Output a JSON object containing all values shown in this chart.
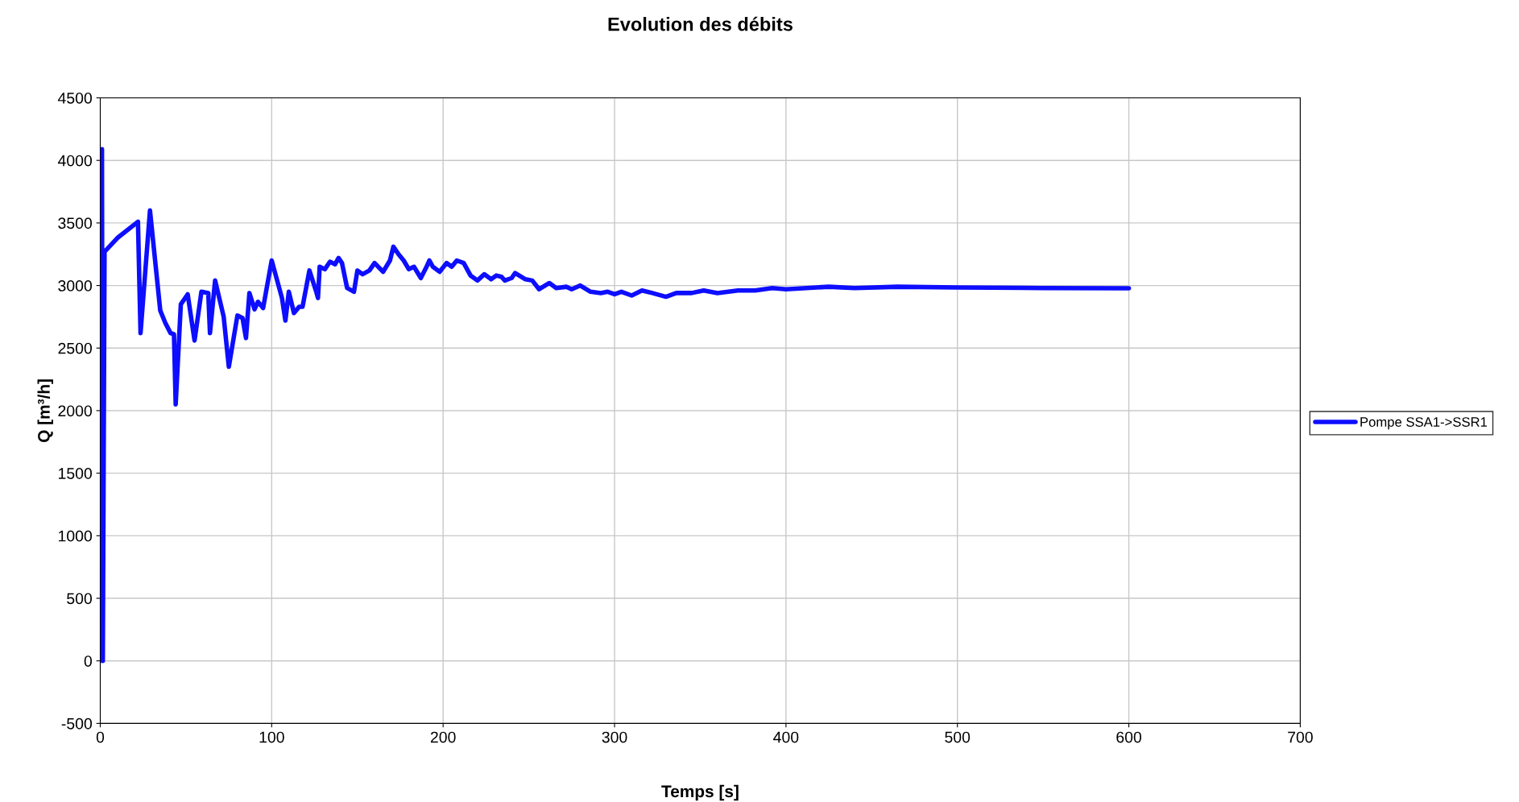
{
  "chart_data": {
    "type": "line",
    "title": "Evolution des débits",
    "xlabel": "Temps [s]",
    "ylabel": "Q [m³/h]",
    "xlim": [
      0,
      700
    ],
    "xticks": [
      0,
      100,
      200,
      300,
      400,
      500,
      600,
      700
    ],
    "ylim": [
      -500,
      4500
    ],
    "yticks": [
      -500,
      0,
      500,
      1000,
      1500,
      2000,
      2500,
      3000,
      3500,
      4000,
      4500
    ],
    "grid": true,
    "legend": "right",
    "marker": "none",
    "line_style": "solid",
    "series": [
      {
        "name": "Pompe SSA1->SSR1",
        "color": "#0d0dff",
        "x": [
          0,
          1,
          1.5,
          2.5,
          10,
          22,
          23.5,
          29,
          35,
          38,
          41,
          43,
          44,
          47,
          51,
          55,
          59,
          63,
          64,
          67,
          72,
          75,
          80,
          83,
          85,
          87,
          90,
          92,
          95,
          100,
          106,
          108,
          110,
          113,
          116,
          118,
          122,
          126,
          127,
          128,
          131,
          134,
          137,
          139,
          141,
          144,
          148,
          150,
          153,
          157,
          160,
          165,
          169,
          171,
          174,
          177,
          180,
          183,
          187,
          190,
          192,
          194,
          198,
          202,
          205,
          208,
          212,
          216,
          220,
          224,
          228,
          231,
          234,
          236,
          240,
          242,
          248,
          252,
          256,
          262,
          266,
          272,
          275,
          280,
          286,
          292,
          296,
          300,
          304,
          310,
          316,
          322,
          330,
          336,
          345,
          352,
          360,
          372,
          382,
          392,
          400,
          425,
          440,
          465,
          500,
          550,
          600
        ],
        "values": [
          0,
          4090,
          0,
          3270,
          3380,
          3510,
          2620,
          3600,
          2800,
          2700,
          2620,
          2610,
          2050,
          2850,
          2930,
          2560,
          2950,
          2940,
          2620,
          3040,
          2750,
          2350,
          2760,
          2740,
          2580,
          2940,
          2810,
          2870,
          2820,
          3200,
          2900,
          2720,
          2950,
          2780,
          2830,
          2830,
          3120,
          2950,
          2900,
          3150,
          3130,
          3190,
          3170,
          3220,
          3180,
          2980,
          2950,
          3120,
          3090,
          3120,
          3180,
          3110,
          3200,
          3310,
          3250,
          3200,
          3130,
          3150,
          3060,
          3140,
          3200,
          3150,
          3110,
          3180,
          3150,
          3200,
          3180,
          3080,
          3040,
          3090,
          3050,
          3080,
          3070,
          3040,
          3060,
          3100,
          3050,
          3040,
          2970,
          3020,
          2980,
          2990,
          2970,
          3000,
          2950,
          2940,
          2950,
          2930,
          2950,
          2920,
          2960,
          2940,
          2910,
          2940,
          2940,
          2960,
          2940,
          2960,
          2960,
          2980,
          2970,
          2990,
          2980,
          2990,
          2985,
          2980,
          2978
        ]
      }
    ]
  }
}
